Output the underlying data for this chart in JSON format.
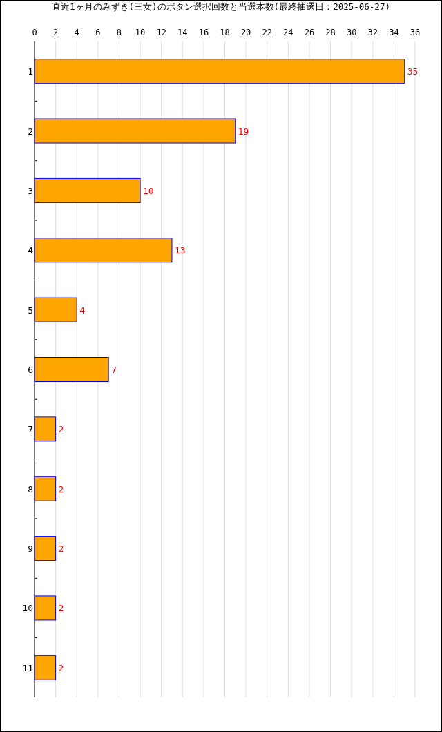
{
  "chart_data": {
    "type": "bar",
    "orientation": "horizontal",
    "title": "直近1ヶ月のみずき(三女)のボタン選択回数と当選本数(最終抽選日：2025-06-27)",
    "categories": [
      "1",
      "2",
      "3",
      "4",
      "5",
      "6",
      "7",
      "8",
      "9",
      "10",
      "11"
    ],
    "values": [
      35,
      19,
      10,
      13,
      4,
      7,
      2,
      2,
      2,
      2,
      2
    ],
    "color": "#ffa500",
    "xlim": [
      0,
      36
    ],
    "xticks": [
      0,
      2,
      4,
      6,
      8,
      10,
      12,
      14,
      16,
      18,
      20,
      22,
      24,
      26,
      28,
      30,
      32,
      34,
      36
    ],
    "grid": "x",
    "data_labels": true
  }
}
